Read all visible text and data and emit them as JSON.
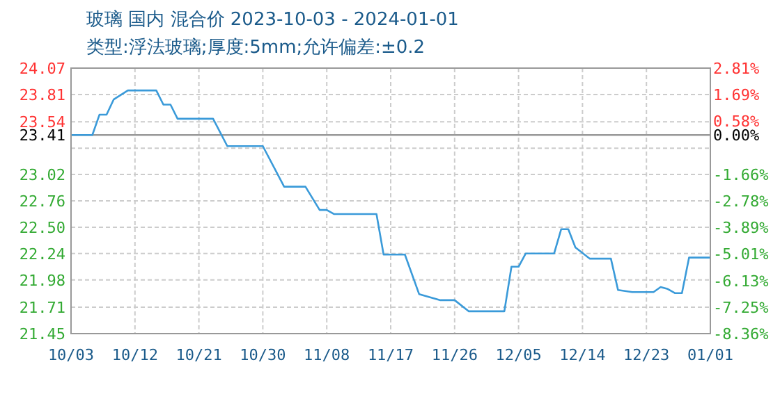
{
  "chart_data": {
    "type": "line",
    "title": "玻璃 国内 混合价 2023-10-03 - 2024-01-01",
    "subtitle": "类型:浮法玻璃;厚度:5mm;允许偏差:±0.2",
    "series": [
      {
        "color": "#3a9ad9",
        "x": [
          "2023-10-03",
          "2023-10-06",
          "2023-10-07",
          "2023-10-08",
          "2023-10-09",
          "2023-10-11",
          "2023-10-15",
          "2023-10-16",
          "2023-10-17",
          "2023-10-18",
          "2023-10-23",
          "2023-10-25",
          "2023-10-30",
          "2023-11-02",
          "2023-11-05",
          "2023-11-07",
          "2023-11-08",
          "2023-11-09",
          "2023-11-15",
          "2023-11-16",
          "2023-11-19",
          "2023-11-21",
          "2023-11-24",
          "2023-11-26",
          "2023-11-28",
          "2023-12-03",
          "2023-12-04",
          "2023-12-05",
          "2023-12-06",
          "2023-12-10",
          "2023-12-11",
          "2023-12-12",
          "2023-12-13",
          "2023-12-15",
          "2023-12-18",
          "2023-12-19",
          "2023-12-21",
          "2023-12-24",
          "2023-12-25",
          "2023-12-26",
          "2023-12-27",
          "2023-12-28",
          "2023-12-29",
          "2024-01-01"
        ],
        "values": [
          23.41,
          23.41,
          23.61,
          23.61,
          23.76,
          23.85,
          23.85,
          23.71,
          23.71,
          23.57,
          23.57,
          23.3,
          23.3,
          22.9,
          22.9,
          22.67,
          22.67,
          22.63,
          22.63,
          22.23,
          22.23,
          21.84,
          21.78,
          21.78,
          21.67,
          21.67,
          22.11,
          22.11,
          22.24,
          22.24,
          22.48,
          22.48,
          22.3,
          22.19,
          22.19,
          21.88,
          21.86,
          21.86,
          21.91,
          21.89,
          21.85,
          21.85,
          22.2,
          22.2
        ]
      }
    ],
    "xlim": [
      "2023-10-03",
      "2024-01-01"
    ],
    "xticks": [
      {
        "value": "2023-10-03",
        "label": "10/03"
      },
      {
        "value": "2023-10-12",
        "label": "10/12"
      },
      {
        "value": "2023-10-21",
        "label": "10/21"
      },
      {
        "value": "2023-10-30",
        "label": "10/30"
      },
      {
        "value": "2023-11-08",
        "label": "11/08"
      },
      {
        "value": "2023-11-17",
        "label": "11/17"
      },
      {
        "value": "2023-11-26",
        "label": "11/26"
      },
      {
        "value": "2023-12-05",
        "label": "12/05"
      },
      {
        "value": "2023-12-14",
        "label": "12/14"
      },
      {
        "value": "2023-12-23",
        "label": "12/23"
      },
      {
        "value": "2024-01-01",
        "label": "01/01"
      }
    ],
    "ylim": [
      21.45,
      24.07
    ],
    "yticks": [
      24.07,
      23.81,
      23.54,
      {
        "value": 23.28,
        "label": null
      },
      23.41,
      23.02,
      22.76,
      {
        "value": 22.5,
        "label": "22.50"
      },
      22.24,
      21.98,
      21.71,
      21.45
    ],
    "y2lim": [
      -8.36,
      2.81
    ],
    "y2ticks": [
      {
        "value": 2.81,
        "label": "2.81%"
      },
      {
        "value": 1.69,
        "label": "1.69%"
      },
      {
        "value": 0.58,
        "label": "0.58%"
      },
      {
        "value": 0,
        "label": "0.00%"
      },
      {
        "value": -0.55,
        "label": null
      },
      {
        "value": -1.66,
        "label": "-1.66%"
      },
      {
        "value": -2.78,
        "label": "-2.78%"
      },
      {
        "value": -3.89,
        "label": "-3.89%"
      },
      {
        "value": -5.01,
        "label": "-5.01%"
      },
      {
        "value": -6.13,
        "label": "-6.13%"
      },
      {
        "value": -7.25,
        "label": "-7.25%"
      },
      {
        "value": -8.36,
        "label": "-8.36%"
      }
    ],
    "ref_lines": [
      {
        "axis": "y",
        "value": 23.41,
        "color": "#999999"
      }
    ],
    "grid": true,
    "line_style": "solid"
  }
}
